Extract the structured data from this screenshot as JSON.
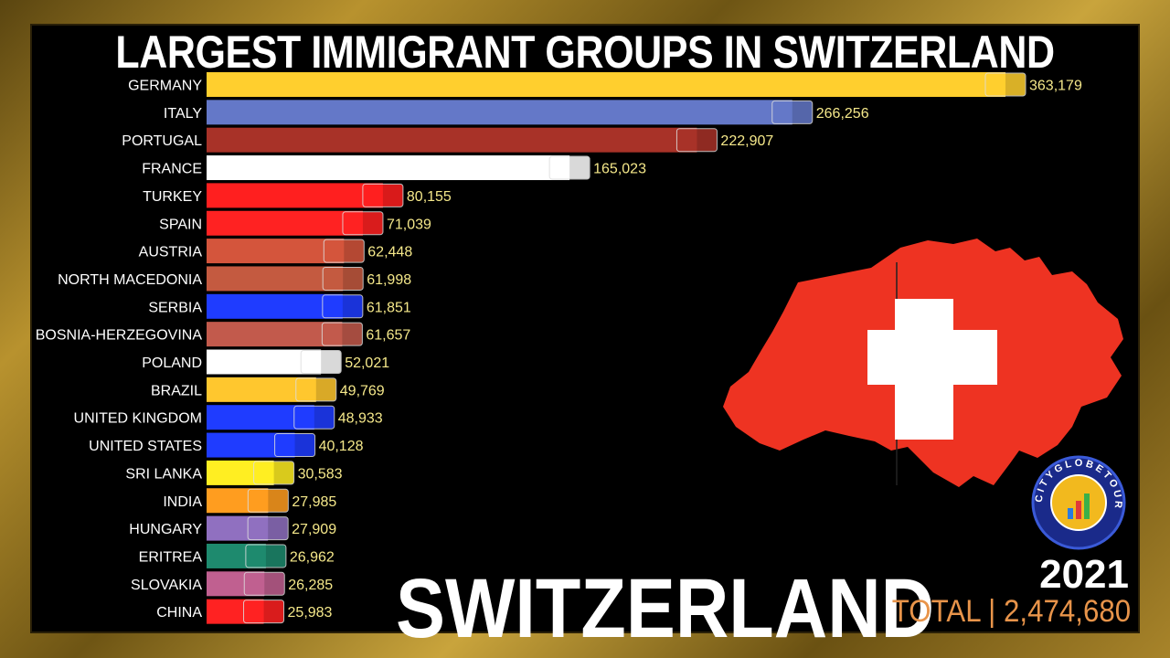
{
  "title": "LARGEST IMMIGRANT GROUPS IN SWITZERLAND",
  "country_label": "SWITZERLAND",
  "year": "2021",
  "total_label": "TOTAL | 2,474,680",
  "logo_text": "CITYGLOBETOUR",
  "chart_data": {
    "type": "bar",
    "orientation": "horizontal",
    "categories": [
      "GERMANY",
      "ITALY",
      "PORTUGAL",
      "FRANCE",
      "TURKEY",
      "SPAIN",
      "AUSTRIA",
      "NORTH MACEDONIA",
      "SERBIA",
      "BOSNIA-HERZEGOVINA",
      "POLAND",
      "BRAZIL",
      "UNITED KINGDOM",
      "UNITED STATES",
      "SRI LANKA",
      "INDIA",
      "HUNGARY",
      "ERITREA",
      "SLOVAKIA",
      "CHINA"
    ],
    "values": [
      363179,
      266256,
      222907,
      165023,
      80155,
      71039,
      62448,
      61998,
      61851,
      61657,
      52021,
      49769,
      48933,
      40128,
      30583,
      27985,
      27909,
      26962,
      26285,
      25983
    ],
    "value_labels": [
      "363,179",
      "266,256",
      "222,907",
      "165,023",
      "80,155",
      "71,039",
      "62,448",
      "61,998",
      "61,851",
      "61,657",
      "52,021",
      "49,769",
      "48,933",
      "40,128",
      "30,583",
      "27,985",
      "27,909",
      "26,962",
      "26,285",
      "25,983"
    ],
    "colors": [
      "#ffcf2e",
      "#6478c8",
      "#a83228",
      "#ffffff",
      "#ff1f1f",
      "#ff2222",
      "#d4553c",
      "#c45a40",
      "#1f3cff",
      "#c25a4c",
      "#ffffff",
      "#ffc72e",
      "#1f3cff",
      "#1f3cff",
      "#ffee22",
      "#ff9d1f",
      "#9070c0",
      "#1e8a6e",
      "#c06090",
      "#ff2222"
    ],
    "title": "LARGEST IMMIGRANT GROUPS IN SWITZERLAND",
    "xlim": [
      0,
      363179
    ]
  },
  "map_color": "#ee3322"
}
